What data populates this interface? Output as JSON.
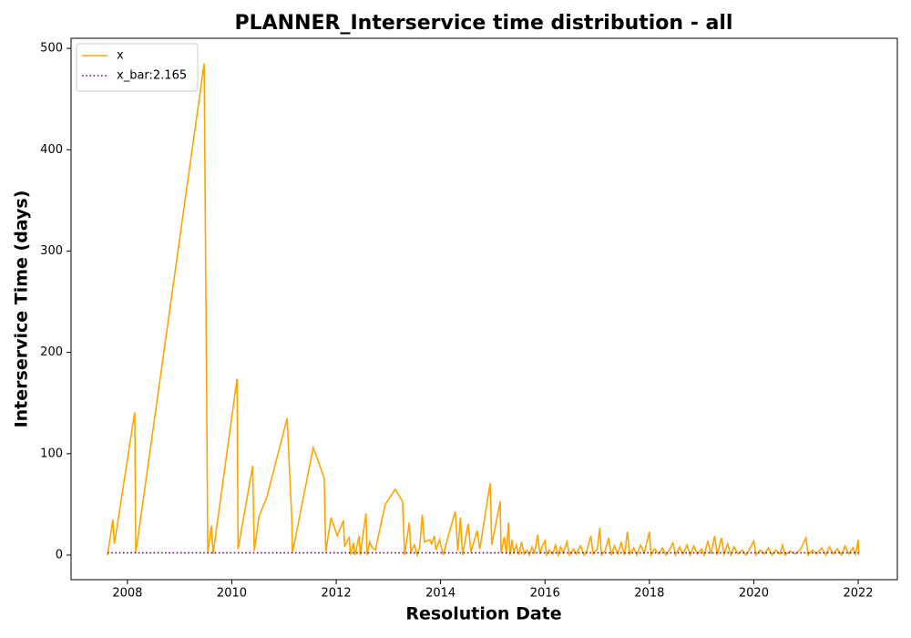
{
  "chart_data": {
    "type": "line",
    "title": "PLANNER_Interservice time distribution - all",
    "xlabel": "Resolution Date",
    "ylabel": "Interservice Time (days)",
    "xlim": [
      2006.92,
      2022.75
    ],
    "ylim": [
      -24.3,
      510
    ],
    "xticks": [
      2008,
      2010,
      2012,
      2014,
      2016,
      2018,
      2020,
      2022
    ],
    "yticks": [
      0,
      100,
      200,
      300,
      400,
      500
    ],
    "legend": "upper left",
    "series": [
      {
        "name": "x",
        "color": "#ffa500",
        "style": "solid",
        "x": [
          2007.62,
          2007.72,
          2007.75,
          2008.14,
          2008.16,
          2009.47,
          2009.54,
          2009.61,
          2009.64,
          2010.1,
          2010.12,
          2010.4,
          2010.43,
          2010.52,
          2010.67,
          2011.06,
          2011.15,
          2011.16,
          2011.56,
          2011.77,
          2011.8,
          2011.9,
          2012.02,
          2012.14,
          2012.16,
          2012.25,
          2012.27,
          2012.33,
          2012.36,
          2012.44,
          2012.46,
          2012.57,
          2012.59,
          2012.64,
          2012.68,
          2012.75,
          2012.94,
          2013.13,
          2013.27,
          2013.31,
          2013.4,
          2013.43,
          2013.5,
          2013.55,
          2013.6,
          2013.65,
          2013.69,
          2013.79,
          2013.83,
          2013.88,
          2013.91,
          2013.98,
          2014.05,
          2014.1,
          2014.28,
          2014.33,
          2014.38,
          2014.42,
          2014.53,
          2014.58,
          2014.7,
          2014.75,
          2014.95,
          2014.98,
          2015.14,
          2015.16,
          2015.22,
          2015.26,
          2015.3,
          2015.33,
          2015.37,
          2015.4,
          2015.45,
          2015.5,
          2015.55,
          2015.6,
          2015.65,
          2015.7,
          2015.75,
          2015.8,
          2015.86,
          2015.9,
          2015.95,
          2016.0,
          2016.03,
          2016.08,
          2016.15,
          2016.2,
          2016.25,
          2016.3,
          2016.35,
          2016.42,
          2016.47,
          2016.55,
          2016.6,
          2016.68,
          2016.75,
          2016.8,
          2016.88,
          2016.92,
          2017.0,
          2017.05,
          2017.08,
          2017.15,
          2017.22,
          2017.27,
          2017.33,
          2017.4,
          2017.46,
          2017.52,
          2017.58,
          2017.62,
          2017.7,
          2017.76,
          2017.83,
          2017.9,
          2018.0,
          2018.03,
          2018.1,
          2018.18,
          2018.25,
          2018.32,
          2018.38,
          2018.45,
          2018.5,
          2018.58,
          2018.64,
          2018.72,
          2018.78,
          2018.85,
          2018.92,
          2019.0,
          2019.05,
          2019.12,
          2019.18,
          2019.25,
          2019.3,
          2019.38,
          2019.43,
          2019.5,
          2019.56,
          2019.62,
          2019.7,
          2019.78,
          2019.85,
          2019.92,
          2020.0,
          2020.04,
          2020.12,
          2020.2,
          2020.28,
          2020.35,
          2020.42,
          2020.5,
          2020.55,
          2020.6,
          2020.7,
          2020.8,
          2020.9,
          2021.0,
          2021.04,
          2021.12,
          2021.2,
          2021.3,
          2021.38,
          2021.45,
          2021.52,
          2021.6,
          2021.68,
          2021.75,
          2021.82,
          2021.9,
          2021.95,
          2022.0,
          2022.01
        ],
        "values": [
          0,
          35,
          11,
          141,
          2,
          485,
          2,
          29,
          1,
          174,
          6,
          88,
          4,
          38,
          57,
          135,
          35,
          2,
          106,
          76,
          3,
          37,
          19,
          34,
          8,
          18,
          0,
          12,
          0,
          19,
          0,
          41,
          0,
          13,
          8,
          5,
          50,
          65,
          53,
          0,
          32,
          3,
          10,
          0,
          8,
          40,
          13,
          15,
          11,
          19,
          5,
          15,
          0,
          10,
          43,
          4,
          37,
          0,
          31,
          3,
          24,
          6,
          71,
          10,
          53,
          2,
          18,
          1,
          32,
          0,
          15,
          2,
          10,
          0,
          13,
          1,
          5,
          0,
          8,
          2,
          20,
          1,
          9,
          14,
          0,
          5,
          1,
          10,
          0,
          8,
          2,
          13,
          0,
          6,
          1,
          9,
          0,
          4,
          19,
          1,
          6,
          27,
          0,
          4,
          17,
          0,
          9,
          1,
          13,
          0,
          23,
          1,
          7,
          0,
          10,
          2,
          23,
          0,
          6,
          1,
          7,
          0,
          5,
          12,
          0,
          8,
          1,
          10,
          0,
          9,
          1,
          6,
          0,
          14,
          1,
          19,
          0,
          17,
          1,
          11,
          0,
          8,
          1,
          5,
          0,
          6,
          14,
          0,
          5,
          1,
          7,
          0,
          5,
          1,
          10,
          0,
          4,
          1,
          6,
          17,
          0,
          5,
          1,
          7,
          0,
          8,
          1,
          6,
          0,
          9,
          1,
          7,
          1,
          15,
          0
        ]
      },
      {
        "name": "x_bar:2.165",
        "color": "#800080",
        "style": "dotted",
        "x": [
          2007.62,
          2022.01
        ],
        "values": [
          2.165,
          2.165
        ]
      }
    ]
  }
}
